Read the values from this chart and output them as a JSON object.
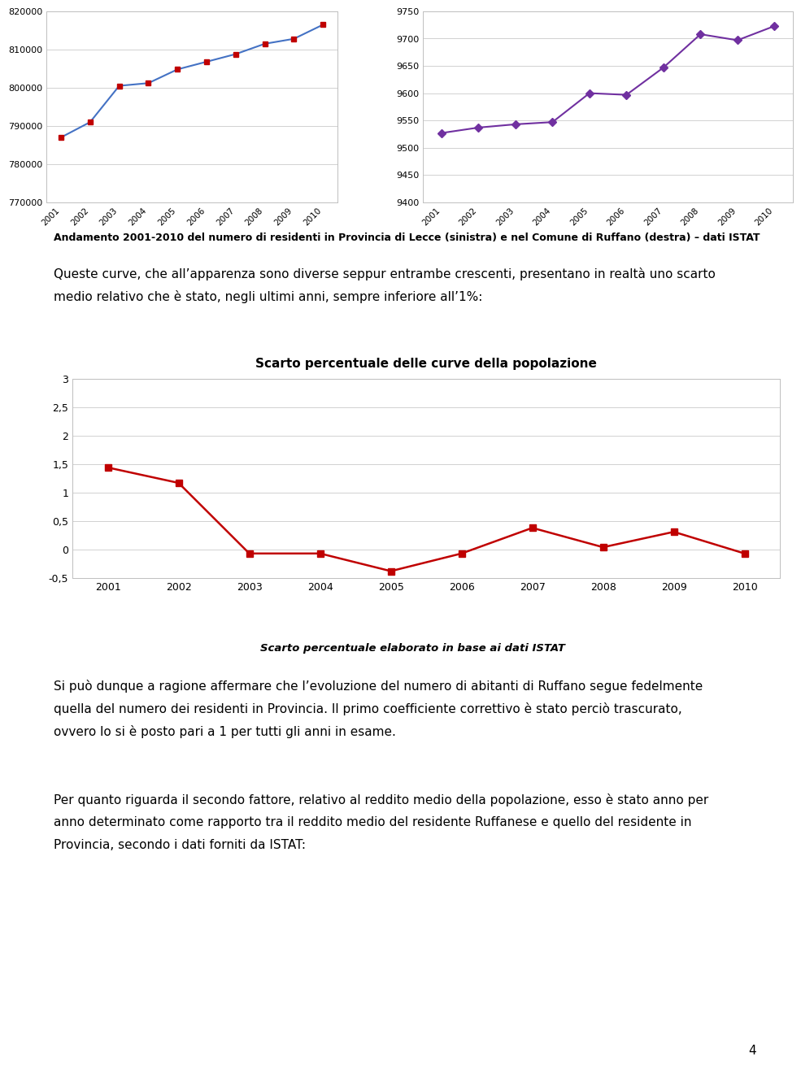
{
  "years": [
    2001,
    2002,
    2003,
    2004,
    2005,
    2006,
    2007,
    2008,
    2009,
    2010
  ],
  "prov_data": [
    787000,
    791000,
    800500,
    801200,
    804800,
    806800,
    808800,
    811500,
    812800,
    816500
  ],
  "ruff_data": [
    9527,
    9537,
    9543,
    9547,
    9600,
    9597,
    9647,
    9708,
    9697,
    9723
  ],
  "scarto_data": [
    1.44,
    1.17,
    -0.07,
    -0.07,
    -0.38,
    -0.07,
    0.38,
    0.04,
    0.31,
    -0.07
  ],
  "chart3_title": "Scarto percentuale delle curve della popolazione",
  "caption1": "Andamento 2001-2010 del numero di residenti in Provincia di Lecce (sinistra) e nel Comune di Ruffano (destra) – dati ISTAT",
  "text1_line1": "Queste curve, che all’apparenza sono diverse seppur entrambe crescenti, presentano in realtà uno scarto",
  "text1_line2": "medio relativo che è stato, negli ultimi anni, sempre inferiore all’1%:",
  "caption3": "Scarto percentuale elaborato in base ai dati ISTAT",
  "text2_line1": "Si può dunque a ragione affermare che l’evoluzione del numero di abitanti di Ruffano segue fedelmente",
  "text2_line2": "quella del numero dei residenti in Provincia. Il primo coefficiente correttivo è stato perciò trascurato,",
  "text2_line3": "ovvero lo si è posto pari a 1 per tutti gli anni in esame.",
  "text3_line1": "Per quanto riguarda il secondo fattore, relativo al reddito medio della popolazione, esso è stato anno per",
  "text3_line2": "anno determinato come rapporto tra il reddito medio del residente Ruffanese e quello del residente in",
  "text3_line3": "Provincia, secondo i dati forniti da ISTAT:",
  "page_number": "4",
  "line1_color": "#4472C4",
  "line2_color": "#7030A0",
  "line3_color": "#C00000",
  "marker1_color": "#C00000",
  "marker2_color": "#7030A0",
  "prov_ylim": [
    770000,
    820000
  ],
  "prov_yticks": [
    770000,
    780000,
    790000,
    800000,
    810000,
    820000
  ],
  "ruff_ylim": [
    9400,
    9750
  ],
  "ruff_yticks": [
    9400,
    9450,
    9500,
    9550,
    9600,
    9650,
    9700,
    9750
  ],
  "scarto_ylim": [
    -0.5,
    3.0
  ],
  "scarto_yticks": [
    -0.5,
    0,
    0.5,
    1,
    1.5,
    2,
    2.5,
    3
  ]
}
